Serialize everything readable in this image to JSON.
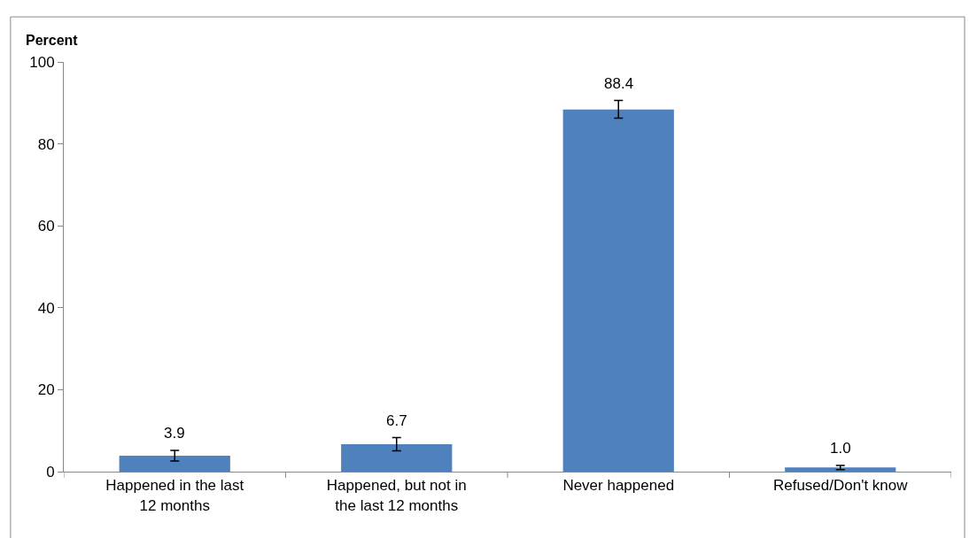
{
  "chart_data": {
    "type": "bar",
    "ylabel": "Percent",
    "categories": [
      "Happened in the last 12 months",
      "Happened, but not in the last 12 months",
      "Never happened",
      "Refused/Don't know"
    ],
    "values": [
      3.9,
      6.7,
      88.4,
      1.0
    ],
    "errors": [
      [
        2.6,
        5.2
      ],
      [
        5.1,
        8.3
      ],
      [
        86.3,
        90.6
      ],
      [
        0.5,
        1.5
      ]
    ],
    "value_labels": [
      "3.9",
      "6.7",
      "88.4",
      "1.0"
    ],
    "color": "#4f81bd",
    "ylim": [
      0,
      100
    ],
    "yticks": [
      0,
      20,
      40,
      60,
      80,
      100
    ]
  }
}
